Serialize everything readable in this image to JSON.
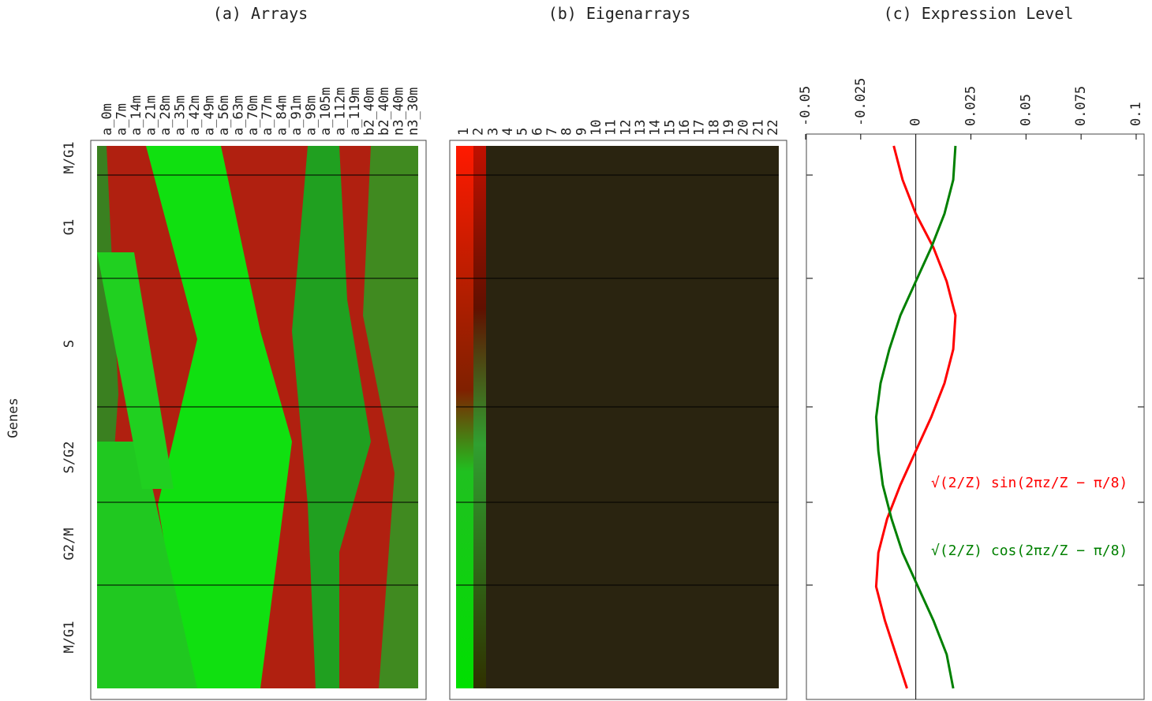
{
  "panels": {
    "a": "(a) Arrays",
    "b": "(b) Eigenarrays",
    "genes": "Genes",
    "phases": [
      "M/G1",
      "G1",
      "S",
      "S/G2",
      "G2/M",
      "M/G1"
    ],
    "arrays": [
      "a_0m",
      "a_7m",
      "a_14m",
      "a_21m",
      "a_28m",
      "a_35m",
      "a_42m",
      "a_49m",
      "a_56m",
      "a_63m",
      "a_70m",
      "a_77m",
      "a_84m",
      "a_91m",
      "a_98m",
      "a_105m",
      "a_112m",
      "a_119m",
      "b2_40m",
      "b2_40m",
      "n3_40m",
      "n3_30m"
    ],
    "eigenarrays": [
      "1",
      "2",
      "3",
      "4",
      "5",
      "6",
      "7",
      "8",
      "9",
      "10",
      "11",
      "12",
      "13",
      "14",
      "15",
      "16",
      "17",
      "18",
      "19",
      "20",
      "21",
      "22"
    ]
  },
  "chart_data": {
    "type": "line",
    "title": "(c) Expression Level",
    "ylim": [
      -0.05,
      0.1036
    ],
    "yticks": [
      -0.05,
      -0.025,
      0,
      0.025,
      0.05,
      0.075,
      0.1
    ],
    "series": [
      {
        "name": "√(2/Z) sin(2πz/Z − π/8)",
        "color": "#ff0000",
        "values": [
          -0.01,
          -0.006,
          0,
          0.008,
          0.014,
          0.018,
          0.017,
          0.013,
          0.007,
          0,
          -0.007,
          -0.013,
          -0.017,
          -0.018,
          -0.014,
          -0.009,
          -0.004
        ]
      },
      {
        "name": "√(2/Z) cos(2πz/Z − π/8)",
        "color": "#008000",
        "values": [
          0.018,
          0.017,
          0.013,
          0.007,
          0,
          -0.007,
          -0.012,
          -0.016,
          -0.018,
          -0.017,
          -0.015,
          -0.011,
          -0.006,
          0.001,
          0.008,
          0.014,
          0.017
        ]
      }
    ]
  }
}
